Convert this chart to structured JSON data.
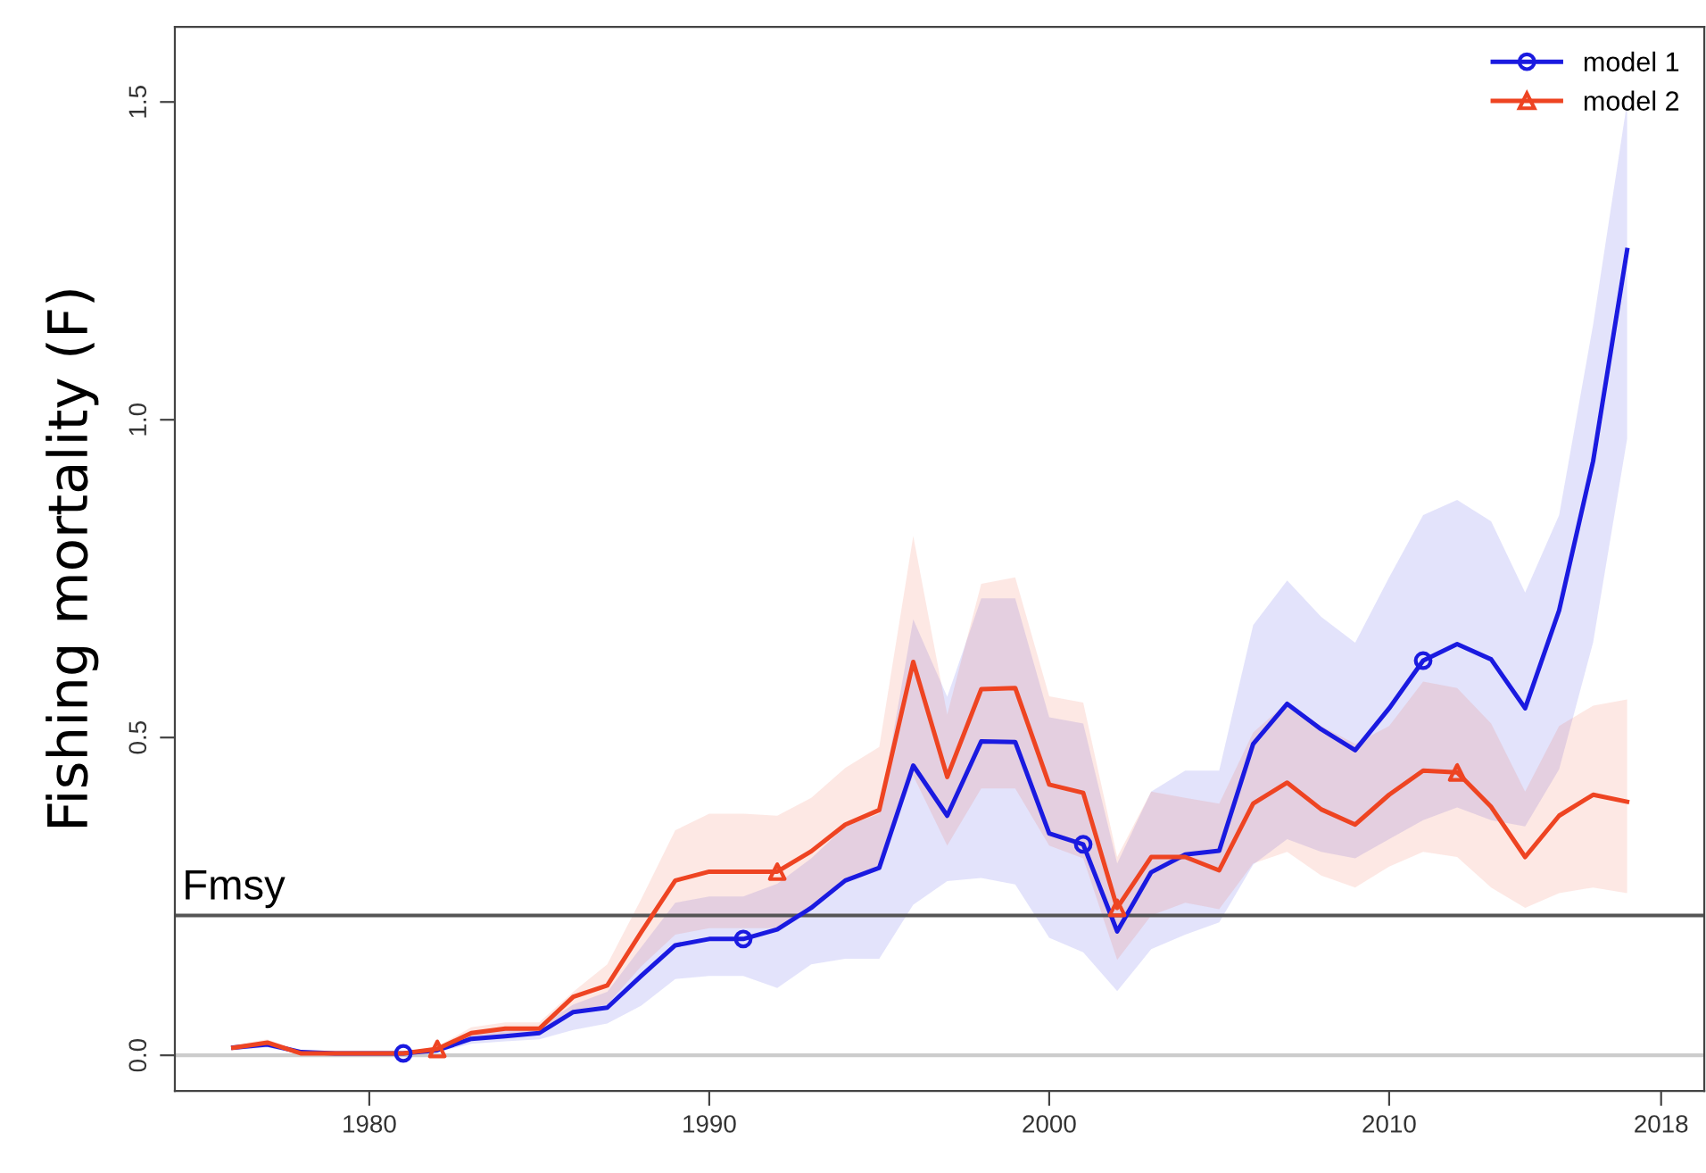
{
  "chart_data": {
    "type": "line",
    "ylabel": "Fishing mortality (F)",
    "x": [
      1976,
      1977,
      1978,
      1979,
      1980,
      1981,
      1982,
      1983,
      1984,
      1985,
      1986,
      1987,
      1988,
      1989,
      1990,
      1991,
      1992,
      1993,
      1994,
      1995,
      1996,
      1997,
      1998,
      1999,
      2000,
      2001,
      2002,
      2003,
      2004,
      2005,
      2006,
      2007,
      2008,
      2009,
      2010,
      2011,
      2012,
      2013,
      2014,
      2015,
      2016,
      2017
    ],
    "series": [
      {
        "name": "model 1",
        "color": "#1a1ae0",
        "values": [
          0.012,
          0.017,
          0.005,
          0.003,
          0.003,
          0.003,
          0.008,
          0.026,
          0.03,
          0.035,
          0.068,
          0.075,
          0.125,
          0.173,
          0.183,
          0.183,
          0.198,
          0.232,
          0.275,
          0.295,
          0.456,
          0.377,
          0.494,
          0.493,
          0.349,
          0.332,
          0.195,
          0.288,
          0.316,
          0.322,
          0.49,
          0.553,
          0.513,
          0.48,
          0.546,
          0.621,
          0.647,
          0.623,
          0.546,
          0.7,
          0.935,
          1.267
        ],
        "lower": [
          0.008,
          0.012,
          0.002,
          0.001,
          0.001,
          0.001,
          0.005,
          0.018,
          0.022,
          0.025,
          0.04,
          0.05,
          0.078,
          0.12,
          0.125,
          0.125,
          0.106,
          0.143,
          0.152,
          0.152,
          0.237,
          0.274,
          0.279,
          0.269,
          0.185,
          0.162,
          0.101,
          0.167,
          0.19,
          0.209,
          0.3,
          0.34,
          0.32,
          0.31,
          0.34,
          0.37,
          0.39,
          0.37,
          0.36,
          0.45,
          0.65,
          0.97
        ],
        "upper": [
          0.016,
          0.022,
          0.008,
          0.005,
          0.005,
          0.005,
          0.012,
          0.034,
          0.04,
          0.045,
          0.08,
          0.1,
          0.17,
          0.24,
          0.25,
          0.25,
          0.27,
          0.31,
          0.36,
          0.38,
          0.686,
          0.564,
          0.719,
          0.719,
          0.532,
          0.522,
          0.302,
          0.415,
          0.448,
          0.448,
          0.677,
          0.747,
          0.69,
          0.649,
          0.752,
          0.85,
          0.874,
          0.84,
          0.728,
          0.85,
          1.15,
          1.5
        ]
      },
      {
        "name": "model 2",
        "color": "#ee4422",
        "values": [
          0.012,
          0.02,
          0.003,
          0.003,
          0.003,
          0.003,
          0.01,
          0.035,
          0.042,
          0.042,
          0.092,
          0.11,
          0.194,
          0.275,
          0.289,
          0.289,
          0.289,
          0.321,
          0.363,
          0.386,
          0.619,
          0.438,
          0.576,
          0.578,
          0.426,
          0.413,
          0.232,
          0.312,
          0.312,
          0.291,
          0.396,
          0.429,
          0.387,
          0.363,
          0.41,
          0.448,
          0.445,
          0.391,
          0.312,
          0.377,
          0.41,
          0.399
        ],
        "lower": [
          0.008,
          0.015,
          0.001,
          0.001,
          0.001,
          0.001,
          0.006,
          0.026,
          0.032,
          0.032,
          0.07,
          0.08,
          0.14,
          0.19,
          0.2,
          0.2,
          0.2,
          0.23,
          0.27,
          0.3,
          0.44,
          0.33,
          0.42,
          0.42,
          0.33,
          0.31,
          0.15,
          0.22,
          0.24,
          0.23,
          0.302,
          0.32,
          0.283,
          0.264,
          0.297,
          0.32,
          0.312,
          0.264,
          0.232,
          0.255,
          0.264,
          0.255
        ],
        "upper": [
          0.016,
          0.025,
          0.006,
          0.005,
          0.005,
          0.005,
          0.014,
          0.044,
          0.052,
          0.052,
          0.1,
          0.143,
          0.246,
          0.354,
          0.38,
          0.38,
          0.377,
          0.405,
          0.452,
          0.485,
          0.817,
          0.536,
          0.742,
          0.752,
          0.565,
          0.555,
          0.312,
          0.415,
          0.405,
          0.396,
          0.508,
          0.555,
          0.518,
          0.49,
          0.518,
          0.588,
          0.578,
          0.522,
          0.415,
          0.518,
          0.55,
          0.56
        ]
      },
      {
        "type": "scatter",
        "color": "#1a1ae0",
        "marker": "circle",
        "x": [
          1981,
          1991,
          2001,
          2011
        ],
        "values": [
          0.003,
          0.183,
          0.332,
          0.621
        ]
      },
      {
        "type": "scatter",
        "color": "#ee4422",
        "marker": "triangle",
        "x": [
          1982,
          1992,
          2002,
          2012
        ],
        "values": [
          0.01,
          0.289,
          0.232,
          0.445
        ]
      }
    ],
    "xlim": [
      1974.28,
      2019.27
    ],
    "xticks": [
      1980,
      1990,
      2000,
      2010,
      2018
    ],
    "ylim": [
      -0.056,
      1.618
    ],
    "yticks": [
      {
        "value": 0,
        "label": "0.0"
      },
      {
        "value": 0.5,
        "label": "0.5"
      },
      {
        "value": 1.0,
        "label": "1.0"
      },
      {
        "value": 1.5,
        "label": "1.5"
      }
    ],
    "ref_lines": [
      {
        "axis": "y",
        "value": 0,
        "color": "#cccccc"
      },
      {
        "axis": "y",
        "value": 0.22,
        "label": "Fmsy",
        "color": "#555555"
      }
    ],
    "legend": "top right",
    "grid": false
  }
}
